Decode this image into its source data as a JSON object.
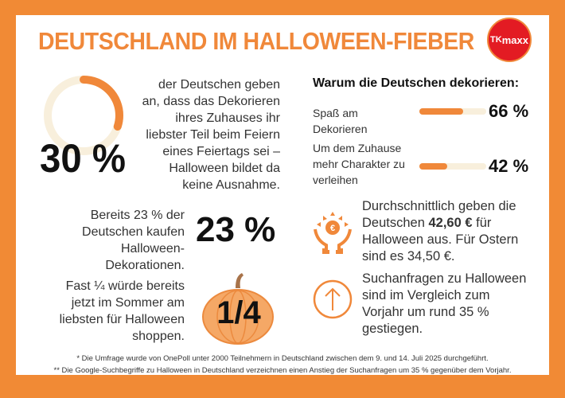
{
  "title": "DEUTSCHLAND IM HALLOWEEN-FIEBER",
  "logo": {
    "text": "TK maxx",
    "color": "#e31b23"
  },
  "colors": {
    "accent": "#f0883a",
    "track": "#f8efdc",
    "border": "#f18a35"
  },
  "stat_30": {
    "value": "30 %",
    "fraction": 0.3,
    "text": [
      "der Deutschen geben",
      "an, dass das Dekorieren",
      "ihres Zuhauses ihr",
      "liebster Teil beim Feiern",
      "eines Feiertags sei –",
      "Halloween bildet da",
      "keine Ausnahme."
    ]
  },
  "why": {
    "heading": "Warum die Deutschen dekorieren:",
    "items": [
      {
        "label": [
          "Spaß am",
          "Dekorieren"
        ],
        "value": "66 %",
        "percent": 66
      },
      {
        "label": [
          "Um dem Zuhause",
          "mehr Charakter zu",
          "verleihen"
        ],
        "value": "42 %",
        "percent": 42
      }
    ]
  },
  "stat_23": {
    "value": "23 %",
    "text": [
      "Bereits 23 % der",
      "Deutschen kaufen",
      "Halloween-",
      "Dekorationen."
    ]
  },
  "stat_quarter": {
    "value": "1/4",
    "icon": "pumpkin-icon",
    "text": [
      "Fast ¼ würde bereits",
      "jetzt im Sommer am",
      "liebsten für Halloween",
      "shoppen."
    ]
  },
  "spending": {
    "icon": "money-hands-icon",
    "line1": "Durchschnittlich geben die",
    "line2_pre": "Deutschen ",
    "line2_bold": "42,60 €",
    "line2_post": " für",
    "line3": "Halloween aus. Für Ostern",
    "line4": "sind es 34,50 €."
  },
  "search": {
    "icon": "arrow-up-circle-icon",
    "text": [
      "Suchanfragen zu Halloween",
      "sind im Vergleich zum",
      "Vorjahr um rund 35 %",
      "gestiegen."
    ]
  },
  "footnotes": [
    "* Die Umfrage wurde von OnePoll unter 2000 Teilnehmern in Deutschland zwischen dem 9. und 14. Juli 2025 durchgeführt.",
    "** Die Google-Suchbegriffe zu Halloween in Deutschland verzeichnen einen Anstieg der Suchanfragen um 35 % gegenüber dem Vorjahr."
  ]
}
